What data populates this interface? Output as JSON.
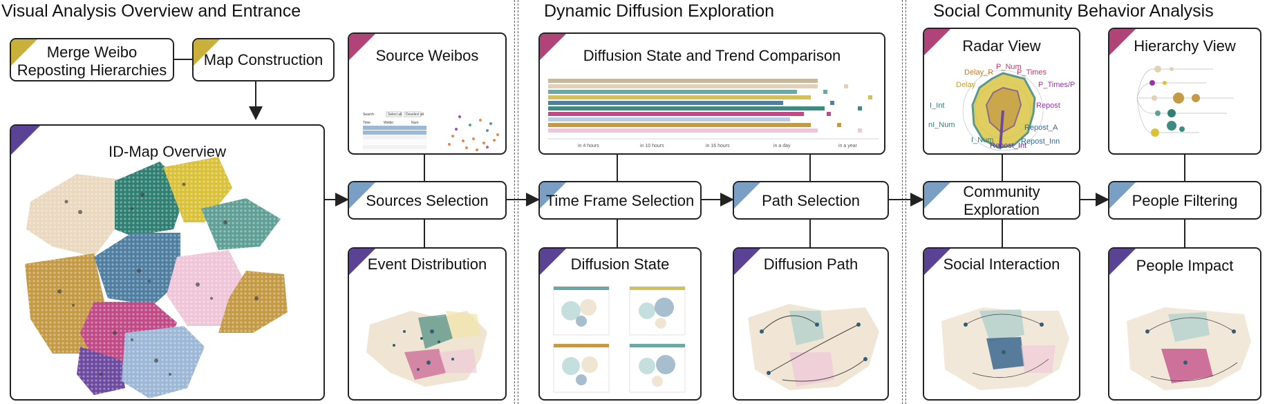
{
  "sections": {
    "overview": "Visual Analysis Overview and Entrance",
    "dynamic": "Dynamic Diffusion Exploration",
    "social": "Social Community Behavior Analysis"
  },
  "boxes": {
    "merge": [
      "Merge Weibo",
      "Reposting Hierarchies"
    ],
    "map_construction": "Map Construction",
    "id_map": "ID-Map Overview",
    "source_weibos": "Source Weibos",
    "sources_selection": "Sources Selection",
    "event_distribution": "Event Distribution",
    "diffusion_trend": "Diffusion State and Trend Comparison",
    "time_frame": "Time Frame Selection",
    "path_selection": "Path Selection",
    "diffusion_state": "Diffusion State",
    "diffusion_path": "Diffusion Path",
    "radar_view": "Radar View",
    "hierarchy_view": "Hierarchy View",
    "community_exploration": [
      "Community",
      "Exploration"
    ],
    "people_filtering": "People Filtering",
    "social_interaction": "Social Interaction",
    "people_impact": "People Impact"
  },
  "source_table": {
    "search_label": "Search:",
    "buttons": [
      "Select all",
      "Deselect all"
    ],
    "headers": [
      "Time",
      "Weibo",
      "Num"
    ]
  },
  "timeline_ticks": [
    "in 4 hours",
    "in 10 hours",
    "in 16 hours",
    "in a day",
    "in a year"
  ],
  "radar_labels": [
    {
      "text": "P_Num",
      "color": "#cc3366"
    },
    {
      "text": "P_Times",
      "color": "#cc3366"
    },
    {
      "text": "P_Times/P",
      "color": "#9933aa"
    },
    {
      "text": "Repost",
      "color": "#9933aa"
    },
    {
      "text": "Repost_A",
      "color": "#336699"
    },
    {
      "text": "Repost_Inn",
      "color": "#336699"
    },
    {
      "text": "Repost_Int",
      "color": "#663399"
    },
    {
      "text": "I_Num",
      "color": "#2f7f7f"
    },
    {
      "text": "nI_Num",
      "color": "#2f7f7f"
    },
    {
      "text": "I_Int",
      "color": "#2f7f7f"
    },
    {
      "text": "Delay",
      "color": "#c8a020"
    },
    {
      "text": "Delay_R",
      "color": "#c87a20"
    }
  ],
  "colors": {
    "yellow": "#d9c23a",
    "teal": "#2f7f72",
    "blue": "#4f7ea0",
    "pink": "#efc6d8",
    "magenta": "#c04a86",
    "tan": "#ead8bf",
    "ochre": "#c49a45",
    "purple": "#6c4aa0",
    "light_blue": "#9cb8d6",
    "aqua": "#5f9f96",
    "badge_gold": "#c9b03a",
    "badge_pink": "#b04478",
    "badge_purple": "#5a4294",
    "badge_blue": "#7a9fc4"
  }
}
